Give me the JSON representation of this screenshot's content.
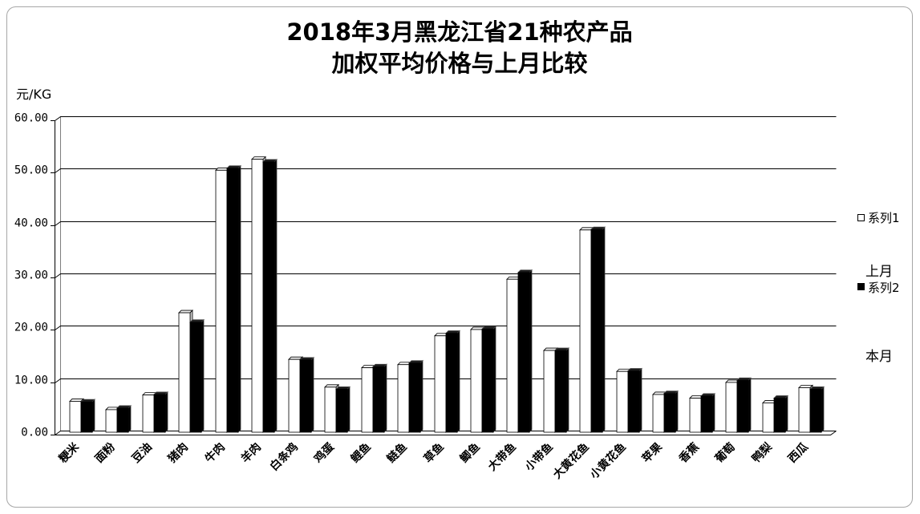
{
  "chart_data": {
    "type": "bar",
    "title": [
      "2018年3月黑龙江省21种农产品",
      "加权平均价格与上月比较"
    ],
    "ylabel": "元/KG",
    "ylim": [
      0,
      60
    ],
    "yticks": [
      "0.00",
      "10.00",
      "20.00",
      "30.00",
      "40.00",
      "50.00",
      "60.00"
    ],
    "grid": true,
    "categories": [
      "粳米",
      "面粉",
      "豆油",
      "猪肉",
      "牛肉",
      "羊肉",
      "白条鸡",
      "鸡蛋",
      "鲤鱼",
      "鲢鱼",
      "草鱼",
      "鲫鱼",
      "大带鱼",
      "小带鱼",
      "大黄花鱼",
      "小黄花鱼",
      "苹果",
      "香蕉",
      "葡萄",
      "鸭梨",
      "西瓜"
    ],
    "series": [
      {
        "name": "系列1",
        "color": "#ffffff",
        "values": [
          5.9,
          4.3,
          7.1,
          22.8,
          50.0,
          52.1,
          13.9,
          8.6,
          12.3,
          12.9,
          18.4,
          19.6,
          29.2,
          15.6,
          38.6,
          11.6,
          7.2,
          6.5,
          9.5,
          5.6,
          8.5
        ]
      },
      {
        "name": "系列2",
        "color": "#000000",
        "values": [
          5.8,
          4.6,
          7.2,
          21.0,
          50.4,
          51.6,
          13.8,
          8.2,
          12.5,
          13.2,
          18.9,
          19.7,
          30.5,
          15.6,
          38.7,
          11.7,
          7.4,
          6.9,
          9.9,
          6.5,
          8.2
        ]
      }
    ],
    "legend": {
      "position": "right",
      "notes": [
        "上月",
        "本月"
      ]
    }
  }
}
